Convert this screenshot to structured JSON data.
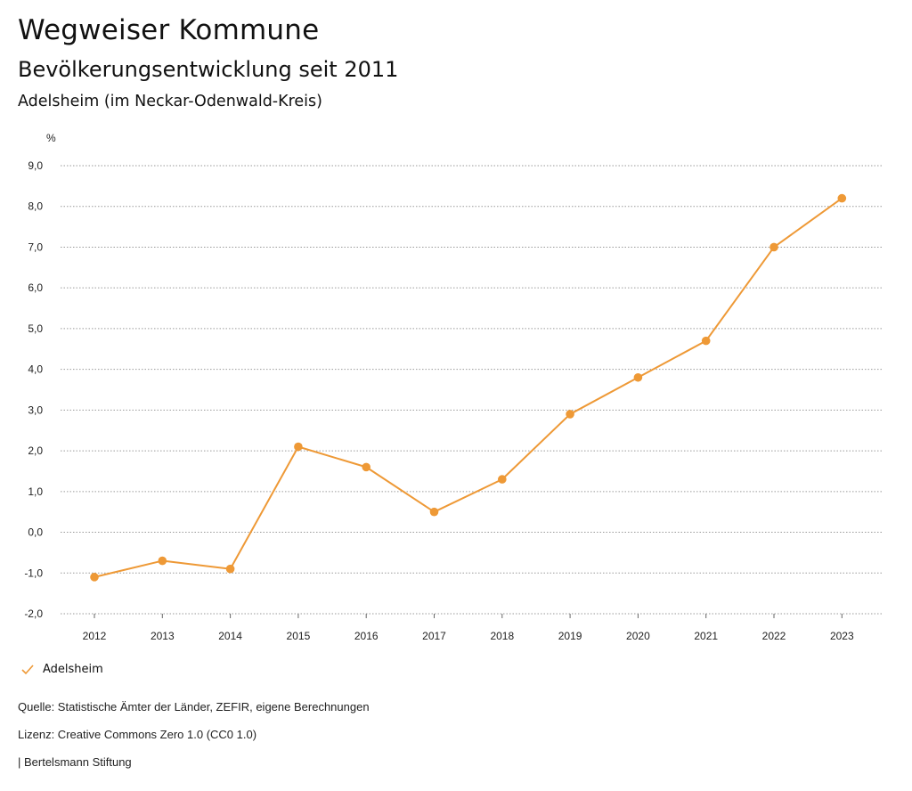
{
  "header": {
    "title": "Wegweiser Kommune",
    "subtitle": "Bevölkerungsentwicklung seit 2011",
    "region": "Adelsheim (im Neckar-Odenwald-Kreis)"
  },
  "chart_data": {
    "type": "line",
    "title": "Bevölkerungsentwicklung seit 2011",
    "ylabel": "%",
    "xlabel": "",
    "categories": [
      "2012",
      "2013",
      "2014",
      "2015",
      "2016",
      "2017",
      "2018",
      "2019",
      "2020",
      "2021",
      "2022",
      "2023"
    ],
    "series": [
      {
        "name": "Adelsheim",
        "color": "#ee9936",
        "values": [
          -1.1,
          -0.7,
          -0.9,
          2.1,
          1.6,
          0.5,
          1.3,
          2.9,
          3.8,
          4.7,
          7.0,
          8.2
        ]
      }
    ],
    "ylim": [
      -2,
      9
    ],
    "yticks": [
      -2,
      -1,
      0,
      1,
      2,
      3,
      4,
      5,
      6,
      7,
      8,
      9
    ],
    "ytick_labels": [
      "-2,0",
      "-1,0",
      "0,0",
      "1,0",
      "2,0",
      "3,0",
      "4,0",
      "5,0",
      "6,0",
      "7,0",
      "8,0",
      "9,0"
    ],
    "grid": true,
    "legend": "bottom-left"
  },
  "legend": {
    "label": "Adelsheim"
  },
  "footer": {
    "source": "Quelle: Statistische Ämter der Länder, ZEFIR, eigene Berechnungen",
    "license": "Lizenz: Creative Commons Zero 1.0 (CC0 1.0)",
    "brand": "| Bertelsmann Stiftung"
  }
}
